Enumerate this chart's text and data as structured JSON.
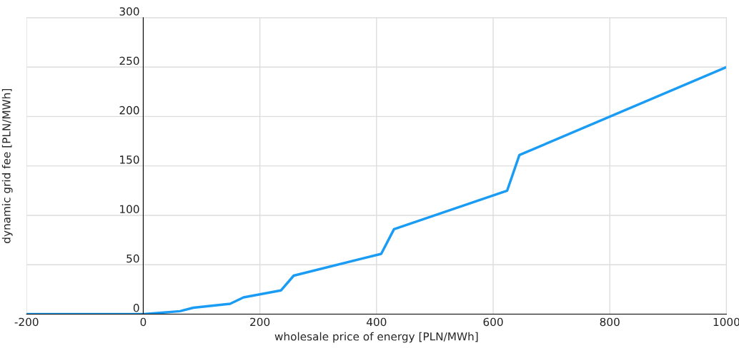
{
  "chart_data": {
    "type": "line",
    "xlabel": "wholesale price of energy [PLN/MWh]",
    "ylabel": "dynamic grid fee [PLN/MWh]",
    "x": [
      -200,
      0,
      63,
      86,
      149,
      172,
      236,
      258,
      408,
      430,
      624,
      645,
      1000
    ],
    "series": [
      {
        "color": "#1a9cf5",
        "values": [
          0,
          0,
          3,
          6.5,
          10.5,
          17,
          24,
          39,
          61,
          86,
          125,
          161,
          250
        ]
      }
    ],
    "xlim": [
      -200,
      1000
    ],
    "ylim": [
      0,
      300
    ],
    "xticks": [
      -200,
      0,
      200,
      400,
      600,
      800,
      1000
    ],
    "yticks": [
      0,
      50,
      100,
      150,
      200,
      250,
      300
    ],
    "grid": true,
    "marker": "none",
    "line_style": "solid"
  }
}
